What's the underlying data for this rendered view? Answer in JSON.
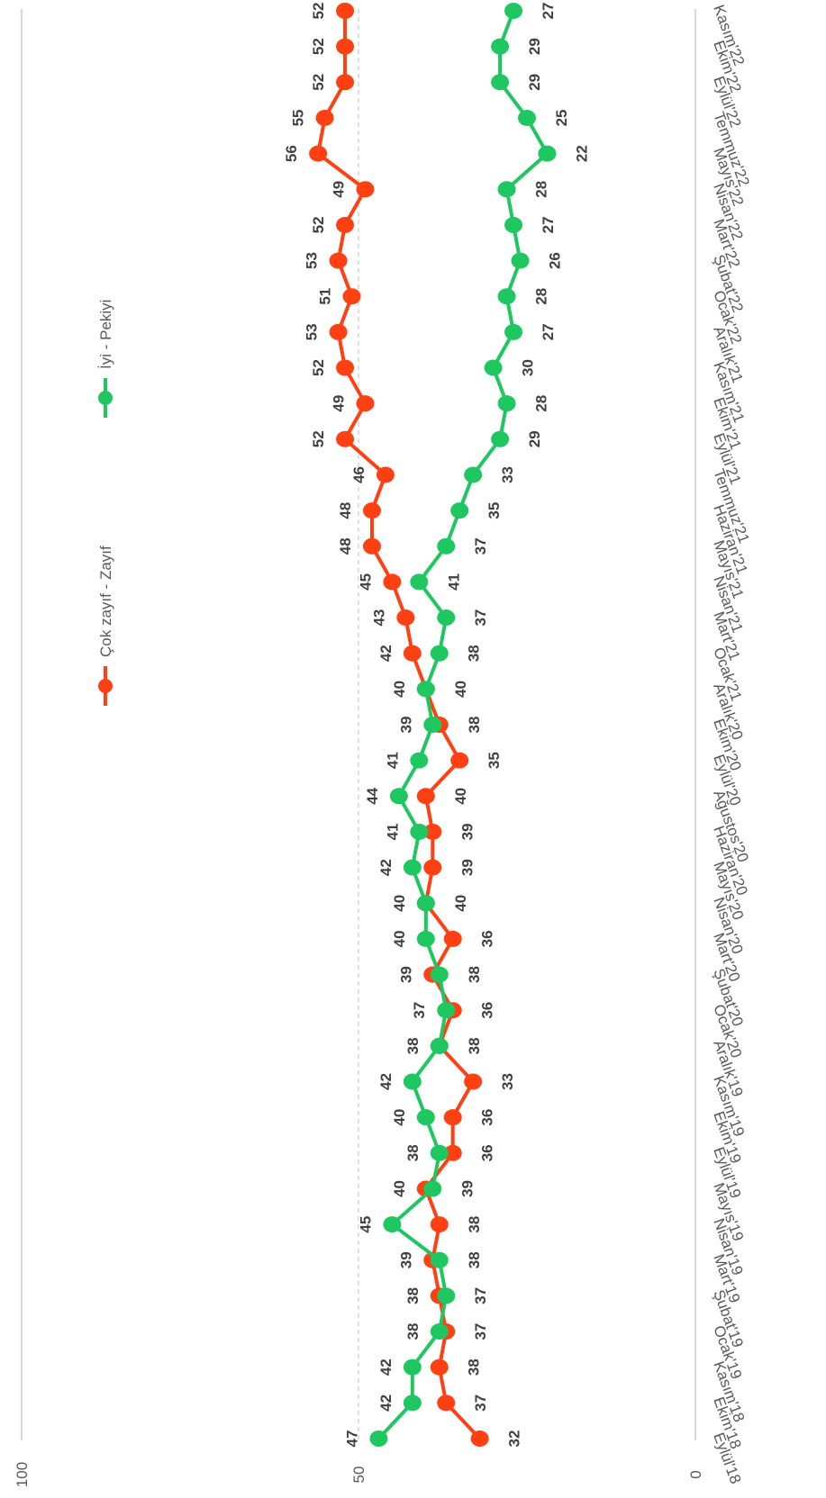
{
  "chart_data": {
    "type": "line",
    "orientation": "rotated-90-clockwise",
    "categories": [
      "Eylül'18",
      "Ekim'18",
      "Kasım'18",
      "Ocak'19",
      "Şubat'19",
      "Mart'19",
      "Nisan'19",
      "Mayıs'19",
      "Eylül'19",
      "Ekim'19",
      "Kasım'19",
      "Aralık'19",
      "Ocak'20",
      "Şubat'20",
      "Mart'20",
      "Nisan'20",
      "Mayıs'20",
      "Haziran'20",
      "Ağustos'20",
      "Eylül'20",
      "Ekim'20",
      "Aralık'20",
      "Ocak'21",
      "Mart'21",
      "Nisan'21",
      "Mayıs'21",
      "Haziran'21",
      "Temmuz'21",
      "Eylül'21",
      "Ekim'21",
      "Kasım'21",
      "Aralık'21",
      "Ocak'22",
      "Şubat'22",
      "Mart'22",
      "Nisan'22",
      "Mayıs'22",
      "Temmuz'22",
      "Eylül'22",
      "Ekim'22",
      "Kasım'22"
    ],
    "series": [
      {
        "name": "Çok zayıf - Zayıf",
        "color": "#ff4013",
        "values": [
          32,
          37,
          38,
          37,
          38,
          39,
          38,
          40,
          36,
          36,
          33,
          38,
          36,
          39,
          36,
          40,
          39,
          39,
          40,
          35,
          38,
          40,
          42,
          43,
          45,
          48,
          48,
          46,
          52,
          49,
          52,
          53,
          51,
          53,
          52,
          49,
          56,
          55,
          52,
          52,
          52
        ]
      },
      {
        "name": "İyi - Pekiyi",
        "color": "#1ec760",
        "values": [
          47,
          42,
          42,
          38,
          37,
          38,
          45,
          39,
          38,
          40,
          42,
          38,
          37,
          38,
          40,
          40,
          42,
          41,
          44,
          41,
          39,
          40,
          38,
          37,
          41,
          37,
          35,
          33,
          29,
          28,
          30,
          27,
          28,
          26,
          27,
          28,
          22,
          25,
          29,
          29,
          27
        ]
      }
    ],
    "value_axis": {
      "ticks": [
        "0",
        "50",
        "100"
      ],
      "range": [
        0,
        100
      ],
      "reference_line": 50
    },
    "legend": {
      "placement": "top"
    }
  }
}
